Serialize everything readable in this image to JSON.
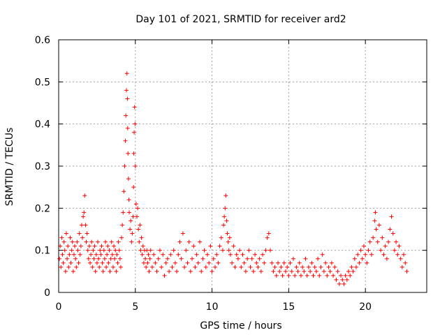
{
  "chart_data": {
    "type": "scatter",
    "title": "Day 101 of 2021, SRMTID for receiver ard2",
    "xlabel": "GPS time / hours",
    "ylabel": "SRMTID / TECUs",
    "xlim": [
      0,
      24
    ],
    "ylim": [
      0,
      0.6
    ],
    "xticks": [
      0,
      5,
      10,
      15,
      20
    ],
    "xtick_labels": [
      "0",
      "5",
      "10",
      "15",
      "20"
    ],
    "yticks": [
      0,
      0.1,
      0.2,
      0.3,
      0.4,
      0.5,
      0.6
    ],
    "ytick_labels": [
      "0",
      "0.1",
      "0.2",
      "0.3",
      "0.4",
      "0.5",
      "0.6"
    ],
    "grid": true,
    "marker": "+",
    "color": "#ff0000",
    "series": [
      {
        "name": "ard2",
        "points": [
          [
            0.05,
            0.08
          ],
          [
            0.1,
            0.11
          ],
          [
            0.15,
            0.06
          ],
          [
            0.2,
            0.13
          ],
          [
            0.25,
            0.09
          ],
          [
            0.3,
            0.07
          ],
          [
            0.35,
            0.12
          ],
          [
            0.4,
            0.1
          ],
          [
            0.45,
            0.05
          ],
          [
            0.5,
            0.14
          ],
          [
            0.55,
            0.08
          ],
          [
            0.6,
            0.11
          ],
          [
            0.65,
            0.06
          ],
          [
            0.7,
            0.09
          ],
          [
            0.75,
            0.13
          ],
          [
            0.8,
            0.07
          ],
          [
            0.85,
            0.1
          ],
          [
            0.9,
            0.12
          ],
          [
            0.95,
            0.05
          ],
          [
            1.0,
            0.09
          ],
          [
            1.05,
            0.11
          ],
          [
            1.1,
            0.08
          ],
          [
            1.15,
            0.06
          ],
          [
            1.2,
            0.12
          ],
          [
            1.25,
            0.1
          ],
          [
            1.3,
            0.07
          ],
          [
            1.35,
            0.14
          ],
          [
            1.4,
            0.09
          ],
          [
            1.45,
            0.11
          ],
          [
            1.5,
            0.16
          ],
          [
            1.55,
            0.13
          ],
          [
            1.6,
            0.18
          ],
          [
            1.65,
            0.19
          ],
          [
            1.7,
            0.23
          ],
          [
            1.75,
            0.16
          ],
          [
            1.8,
            0.12
          ],
          [
            1.85,
            0.14
          ],
          [
            1.9,
            0.1
          ],
          [
            1.95,
            0.08
          ],
          [
            2.0,
            0.11
          ],
          [
            2.05,
            0.07
          ],
          [
            2.1,
            0.09
          ],
          [
            2.15,
            0.12
          ],
          [
            2.2,
            0.06
          ],
          [
            2.25,
            0.1
          ],
          [
            2.3,
            0.08
          ],
          [
            2.35,
            0.11
          ],
          [
            2.4,
            0.05
          ],
          [
            2.45,
            0.09
          ],
          [
            2.5,
            0.07
          ],
          [
            2.55,
            0.12
          ],
          [
            2.6,
            0.08
          ],
          [
            2.65,
            0.06
          ],
          [
            2.7,
            0.1
          ],
          [
            2.75,
            0.09
          ],
          [
            2.8,
            0.11
          ],
          [
            2.85,
            0.07
          ],
          [
            2.9,
            0.05
          ],
          [
            2.95,
            0.1
          ],
          [
            3.0,
            0.08
          ],
          [
            3.05,
            0.12
          ],
          [
            3.1,
            0.06
          ],
          [
            3.15,
            0.09
          ],
          [
            3.2,
            0.11
          ],
          [
            3.25,
            0.07
          ],
          [
            3.3,
            0.1
          ],
          [
            3.35,
            0.05
          ],
          [
            3.4,
            0.08
          ],
          [
            3.45,
            0.12
          ],
          [
            3.5,
            0.09
          ],
          [
            3.55,
            0.06
          ],
          [
            3.6,
            0.11
          ],
          [
            3.65,
            0.08
          ],
          [
            3.7,
            0.1
          ],
          [
            3.75,
            0.05
          ],
          [
            3.8,
            0.09
          ],
          [
            3.85,
            0.07
          ],
          [
            3.9,
            0.12
          ],
          [
            3.95,
            0.1
          ],
          [
            4.0,
            0.08
          ],
          [
            4.05,
            0.06
          ],
          [
            4.1,
            0.13
          ],
          [
            4.15,
            0.16
          ],
          [
            4.2,
            0.19
          ],
          [
            4.25,
            0.24
          ],
          [
            4.3,
            0.3
          ],
          [
            4.35,
            0.36
          ],
          [
            4.38,
            0.42
          ],
          [
            4.42,
            0.48
          ],
          [
            4.45,
            0.52
          ],
          [
            4.48,
            0.46
          ],
          [
            4.5,
            0.39
          ],
          [
            4.52,
            0.33
          ],
          [
            4.55,
            0.27
          ],
          [
            4.58,
            0.22
          ],
          [
            4.6,
            0.19
          ],
          [
            4.65,
            0.15
          ],
          [
            4.7,
            0.17
          ],
          [
            4.75,
            0.12
          ],
          [
            4.8,
            0.14
          ],
          [
            4.85,
            0.18
          ],
          [
            4.88,
            0.25
          ],
          [
            4.9,
            0.33
          ],
          [
            4.92,
            0.38
          ],
          [
            4.95,
            0.44
          ],
          [
            4.98,
            0.4
          ],
          [
            5.0,
            0.3
          ],
          [
            5.05,
            0.21
          ],
          [
            5.1,
            0.18
          ],
          [
            5.15,
            0.2
          ],
          [
            5.2,
            0.15
          ],
          [
            5.25,
            0.12
          ],
          [
            5.3,
            0.16
          ],
          [
            5.35,
            0.1
          ],
          [
            5.4,
            0.13
          ],
          [
            5.45,
            0.09
          ],
          [
            5.5,
            0.11
          ],
          [
            5.55,
            0.07
          ],
          [
            5.6,
            0.1
          ],
          [
            5.65,
            0.08
          ],
          [
            5.7,
            0.06
          ],
          [
            5.75,
            0.1
          ],
          [
            5.8,
            0.07
          ],
          [
            5.85,
            0.09
          ],
          [
            5.9,
            0.05
          ],
          [
            5.95,
            0.08
          ],
          [
            6.0,
            0.1
          ],
          [
            6.1,
            0.06
          ],
          [
            6.2,
            0.09
          ],
          [
            6.3,
            0.07
          ],
          [
            6.4,
            0.05
          ],
          [
            6.5,
            0.08
          ],
          [
            6.6,
            0.1
          ],
          [
            6.7,
            0.06
          ],
          [
            6.8,
            0.09
          ],
          [
            6.9,
            0.04
          ],
          [
            7.0,
            0.07
          ],
          [
            7.1,
            0.08
          ],
          [
            7.2,
            0.05
          ],
          [
            7.3,
            0.09
          ],
          [
            7.4,
            0.06
          ],
          [
            7.5,
            0.1
          ],
          [
            7.6,
            0.07
          ],
          [
            7.7,
            0.05
          ],
          [
            7.8,
            0.09
          ],
          [
            7.9,
            0.12
          ],
          [
            8.0,
            0.08
          ],
          [
            8.1,
            0.14
          ],
          [
            8.2,
            0.06
          ],
          [
            8.3,
            0.1
          ],
          [
            8.4,
            0.07
          ],
          [
            8.5,
            0.12
          ],
          [
            8.6,
            0.05
          ],
          [
            8.7,
            0.08
          ],
          [
            8.8,
            0.11
          ],
          [
            8.9,
            0.06
          ],
          [
            9.0,
            0.09
          ],
          [
            9.1,
            0.07
          ],
          [
            9.2,
            0.12
          ],
          [
            9.3,
            0.05
          ],
          [
            9.4,
            0.08
          ],
          [
            9.5,
            0.1
          ],
          [
            9.6,
            0.06
          ],
          [
            9.7,
            0.09
          ],
          [
            9.8,
            0.07
          ],
          [
            9.9,
            0.11
          ],
          [
            10.0,
            0.05
          ],
          [
            10.1,
            0.08
          ],
          [
            10.2,
            0.06
          ],
          [
            10.3,
            0.09
          ],
          [
            10.4,
            0.07
          ],
          [
            10.5,
            0.11
          ],
          [
            10.6,
            0.13
          ],
          [
            10.7,
            0.1
          ],
          [
            10.75,
            0.16
          ],
          [
            10.8,
            0.18
          ],
          [
            10.85,
            0.2
          ],
          [
            10.9,
            0.23
          ],
          [
            10.95,
            0.17
          ],
          [
            11.0,
            0.14
          ],
          [
            11.05,
            0.12
          ],
          [
            11.1,
            0.1
          ],
          [
            11.15,
            0.13
          ],
          [
            11.2,
            0.09
          ],
          [
            11.3,
            0.07
          ],
          [
            11.4,
            0.11
          ],
          [
            11.5,
            0.06
          ],
          [
            11.6,
            0.09
          ],
          [
            11.7,
            0.08
          ],
          [
            11.8,
            0.1
          ],
          [
            11.9,
            0.06
          ],
          [
            12.0,
            0.09
          ],
          [
            12.1,
            0.07
          ],
          [
            12.2,
            0.05
          ],
          [
            12.3,
            0.08
          ],
          [
            12.4,
            0.1
          ],
          [
            12.5,
            0.06
          ],
          [
            12.6,
            0.08
          ],
          [
            12.7,
            0.05
          ],
          [
            12.8,
            0.09
          ],
          [
            12.9,
            0.07
          ],
          [
            13.0,
            0.06
          ],
          [
            13.1,
            0.08
          ],
          [
            13.2,
            0.05
          ],
          [
            13.3,
            0.09
          ],
          [
            13.4,
            0.07
          ],
          [
            13.5,
            0.1
          ],
          [
            13.6,
            0.13
          ],
          [
            13.7,
            0.14
          ],
          [
            13.8,
            0.1
          ],
          [
            13.9,
            0.07
          ],
          [
            14.0,
            0.05
          ],
          [
            14.1,
            0.06
          ],
          [
            14.2,
            0.04
          ],
          [
            14.3,
            0.07
          ],
          [
            14.4,
            0.05
          ],
          [
            14.5,
            0.06
          ],
          [
            14.6,
            0.04
          ],
          [
            14.7,
            0.07
          ],
          [
            14.8,
            0.05
          ],
          [
            14.9,
            0.06
          ],
          [
            15.0,
            0.04
          ],
          [
            15.1,
            0.07
          ],
          [
            15.2,
            0.05
          ],
          [
            15.3,
            0.08
          ],
          [
            15.4,
            0.04
          ],
          [
            15.5,
            0.06
          ],
          [
            15.6,
            0.05
          ],
          [
            15.7,
            0.07
          ],
          [
            15.8,
            0.04
          ],
          [
            15.9,
            0.06
          ],
          [
            16.0,
            0.05
          ],
          [
            16.1,
            0.08
          ],
          [
            16.2,
            0.04
          ],
          [
            16.3,
            0.06
          ],
          [
            16.4,
            0.05
          ],
          [
            16.5,
            0.07
          ],
          [
            16.6,
            0.04
          ],
          [
            16.7,
            0.06
          ],
          [
            16.8,
            0.05
          ],
          [
            16.9,
            0.08
          ],
          [
            17.0,
            0.04
          ],
          [
            17.1,
            0.06
          ],
          [
            17.2,
            0.09
          ],
          [
            17.3,
            0.05
          ],
          [
            17.4,
            0.07
          ],
          [
            17.5,
            0.04
          ],
          [
            17.6,
            0.06
          ],
          [
            17.7,
            0.05
          ],
          [
            17.8,
            0.07
          ],
          [
            17.9,
            0.04
          ],
          [
            18.0,
            0.06
          ],
          [
            18.1,
            0.03
          ],
          [
            18.2,
            0.05
          ],
          [
            18.3,
            0.02
          ],
          [
            18.4,
            0.04
          ],
          [
            18.5,
            0.03
          ],
          [
            18.6,
            0.02
          ],
          [
            18.7,
            0.04
          ],
          [
            18.8,
            0.03
          ],
          [
            18.9,
            0.05
          ],
          [
            19.0,
            0.04
          ],
          [
            19.1,
            0.06
          ],
          [
            19.2,
            0.05
          ],
          [
            19.3,
            0.08
          ],
          [
            19.4,
            0.06
          ],
          [
            19.5,
            0.09
          ],
          [
            19.6,
            0.07
          ],
          [
            19.7,
            0.1
          ],
          [
            19.8,
            0.08
          ],
          [
            19.9,
            0.11
          ],
          [
            20.0,
            0.09
          ],
          [
            20.1,
            0.07
          ],
          [
            20.2,
            0.1
          ],
          [
            20.3,
            0.12
          ],
          [
            20.4,
            0.09
          ],
          [
            20.5,
            0.13
          ],
          [
            20.6,
            0.17
          ],
          [
            20.65,
            0.19
          ],
          [
            20.7,
            0.15
          ],
          [
            20.8,
            0.12
          ],
          [
            20.9,
            0.16
          ],
          [
            21.0,
            0.1
          ],
          [
            21.1,
            0.13
          ],
          [
            21.2,
            0.09
          ],
          [
            21.3,
            0.11
          ],
          [
            21.4,
            0.08
          ],
          [
            21.5,
            0.12
          ],
          [
            21.6,
            0.15
          ],
          [
            21.7,
            0.18
          ],
          [
            21.8,
            0.14
          ],
          [
            21.9,
            0.1
          ],
          [
            22.0,
            0.12
          ],
          [
            22.1,
            0.09
          ],
          [
            22.2,
            0.11
          ],
          [
            22.3,
            0.08
          ],
          [
            22.4,
            0.06
          ],
          [
            22.5,
            0.09
          ],
          [
            22.6,
            0.07
          ],
          [
            22.7,
            0.05
          ]
        ]
      }
    ]
  }
}
